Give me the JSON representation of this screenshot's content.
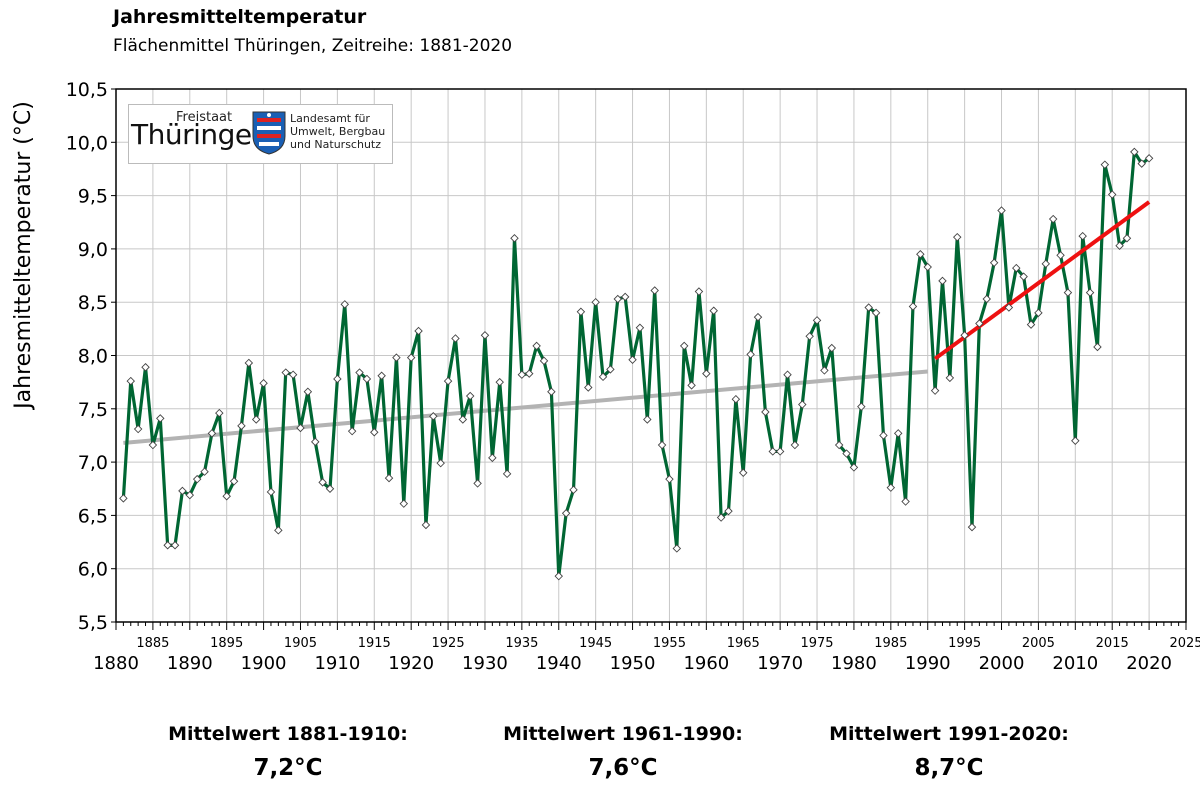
{
  "header": {
    "title": "Jahresmitteltemperatur",
    "subtitle": "Flächenmittel Thüringen, Zeitreihe:  1881-2020"
  },
  "logo": {
    "freistaat": "Freistaat",
    "name": "Thüringen",
    "org_lines": [
      "Landesamt für",
      "Umwelt, Bergbau",
      "und Naturschutz"
    ]
  },
  "means": [
    {
      "label": "Mittelwert 1881-1910:",
      "value": "7,2°C"
    },
    {
      "label": "Mittelwert 1961-1990:",
      "value": "7,6°C"
    },
    {
      "label": "Mittelwert 1991-2020:",
      "value": "8,7°C"
    }
  ],
  "chart_data": {
    "type": "line",
    "title": "Jahresmitteltemperatur",
    "subtitle": "Flächenmittel Thüringen, Zeitreihe:  1881-2020",
    "ylabel": "Jahresmitteltemperatur (°C)",
    "xlabel": "",
    "xlim": [
      1880,
      2025
    ],
    "ylim": [
      5.5,
      10.5
    ],
    "grid": true,
    "yticks": [
      "5,5",
      "6,0",
      "6,5",
      "7,0",
      "7,5",
      "8,0",
      "8,5",
      "9,0",
      "9,5",
      "10,0",
      "10,5"
    ],
    "xticks_major": [
      "1880",
      "1890",
      "1900",
      "1910",
      "1920",
      "1930",
      "1940",
      "1950",
      "1960",
      "1970",
      "1980",
      "1990",
      "2000",
      "2010",
      "2020"
    ],
    "xticks_minor": [
      "1885",
      "1895",
      "1905",
      "1915",
      "1925",
      "1935",
      "1945",
      "1955",
      "1965",
      "1975",
      "1985",
      "1995",
      "2005",
      "2015",
      "2025"
    ],
    "series": [
      {
        "color": "#006633",
        "x": [
          1881,
          1882,
          1883,
          1884,
          1885,
          1886,
          1887,
          1888,
          1889,
          1890,
          1891,
          1892,
          1893,
          1894,
          1895,
          1896,
          1897,
          1898,
          1899,
          1900,
          1901,
          1902,
          1903,
          1904,
          1905,
          1906,
          1907,
          1908,
          1909,
          1910,
          1911,
          1912,
          1913,
          1914,
          1915,
          1916,
          1917,
          1918,
          1919,
          1920,
          1921,
          1922,
          1923,
          1924,
          1925,
          1926,
          1927,
          1928,
          1929,
          1930,
          1931,
          1932,
          1933,
          1934,
          1935,
          1936,
          1937,
          1938,
          1939,
          1940,
          1941,
          1942,
          1943,
          1944,
          1945,
          1946,
          1947,
          1948,
          1949,
          1950,
          1951,
          1952,
          1953,
          1954,
          1955,
          1956,
          1957,
          1958,
          1959,
          1960,
          1961,
          1962,
          1963,
          1964,
          1965,
          1966,
          1967,
          1968,
          1969,
          1970,
          1971,
          1972,
          1973,
          1974,
          1975,
          1976,
          1977,
          1978,
          1979,
          1980,
          1981,
          1982,
          1983,
          1984,
          1985,
          1986,
          1987,
          1988,
          1989,
          1990,
          1991,
          1992,
          1993,
          1994,
          1995,
          1996,
          1997,
          1998,
          1999,
          2000,
          2001,
          2002,
          2003,
          2004,
          2005,
          2006,
          2007,
          2008,
          2009,
          2010,
          2011,
          2012,
          2013,
          2014,
          2015,
          2016,
          2017,
          2018,
          2019,
          2020
        ],
        "y": [
          6.66,
          7.76,
          7.31,
          7.89,
          7.16,
          7.41,
          6.22,
          6.22,
          6.73,
          6.69,
          6.84,
          6.91,
          7.27,
          7.46,
          6.68,
          6.82,
          7.34,
          7.93,
          7.4,
          7.74,
          6.72,
          6.36,
          7.84,
          7.82,
          7.32,
          7.66,
          7.19,
          6.81,
          6.75,
          7.78,
          8.48,
          7.29,
          7.84,
          7.78,
          7.28,
          7.81,
          6.85,
          7.98,
          6.61,
          7.98,
          8.23,
          6.41,
          7.43,
          6.99,
          7.76,
          8.16,
          7.4,
          7.62,
          6.8,
          8.19,
          7.04,
          7.75,
          6.89,
          9.1,
          7.82,
          7.83,
          8.09,
          7.95,
          7.66,
          5.93,
          6.52,
          6.74,
          8.41,
          7.7,
          8.5,
          7.8,
          7.87,
          8.53,
          8.55,
          7.96,
          8.26,
          7.4,
          8.61,
          7.16,
          6.84,
          6.19,
          8.09,
          7.72,
          8.6,
          7.83,
          8.42,
          6.48,
          6.54,
          7.59,
          6.9,
          8.01,
          8.36,
          7.47,
          7.1,
          7.1,
          7.82,
          7.16,
          7.54,
          8.18,
          8.33,
          7.86,
          8.07,
          7.16,
          7.08,
          6.95,
          7.52,
          8.45,
          8.4,
          7.25,
          6.76,
          7.27,
          6.63,
          8.46,
          8.95,
          8.83,
          7.67,
          8.7,
          7.79,
          9.11,
          8.19,
          6.39,
          8.3,
          8.53,
          8.87,
          9.36,
          8.45,
          8.82,
          8.74,
          8.29,
          8.4,
          8.86,
          9.28,
          8.94,
          8.59,
          7.2,
          9.12,
          8.59,
          8.08,
          9.79,
          9.51,
          9.03,
          9.1,
          9.91,
          9.8,
          9.85
        ]
      },
      {
        "name": "",
        "color": "#b3b3b3",
        "x": [
          1881,
          1990
        ],
        "y": [
          7.18,
          7.85
        ]
      },
      {
        "name": "",
        "color": "#ee1111",
        "x": [
          1991,
          2020
        ],
        "y": [
          7.97,
          9.44
        ]
      }
    ]
  }
}
